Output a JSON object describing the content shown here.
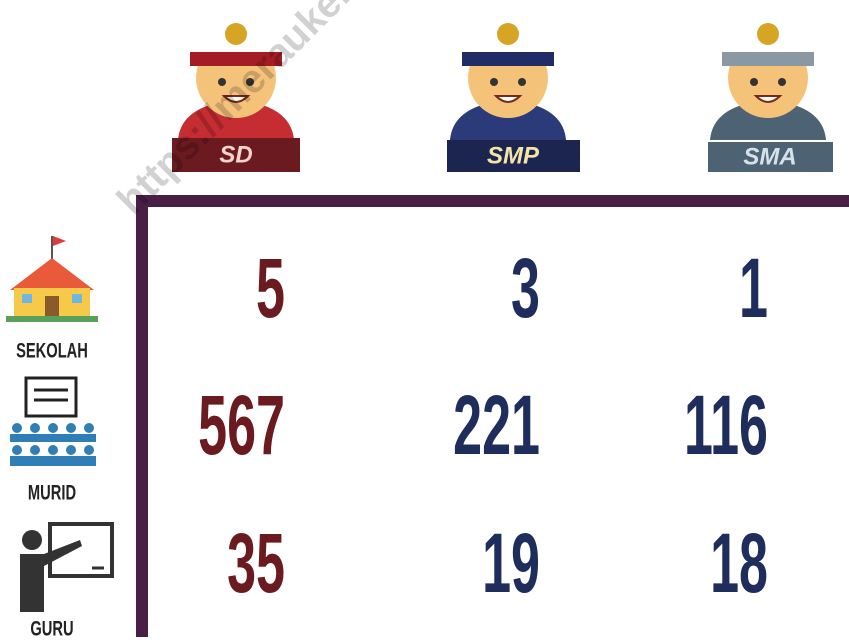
{
  "watermark": "https://meraukekab.bps.go.id",
  "columns": [
    "SD",
    "SMP",
    "SMA"
  ],
  "rows": [
    {
      "label": "SEKOLAH",
      "values": [
        5,
        3,
        1
      ]
    },
    {
      "label": "MURID",
      "values": [
        567,
        221,
        116
      ]
    },
    {
      "label": "GURU",
      "values": [
        35,
        19,
        18
      ]
    }
  ]
}
